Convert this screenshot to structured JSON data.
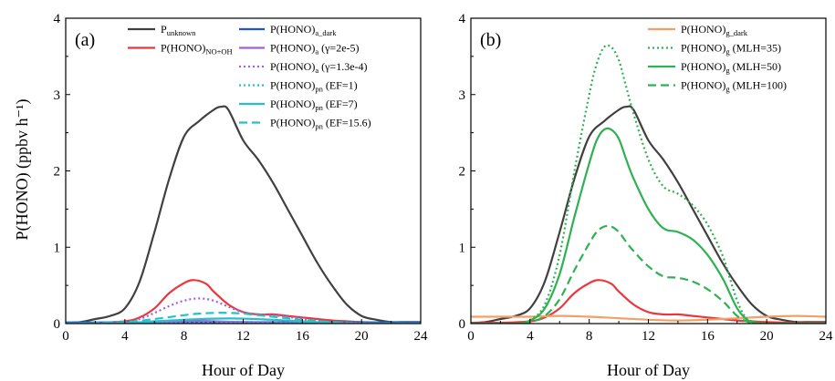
{
  "figure": {
    "ylabel": "P(HONO) (ppbv h⁻¹)"
  },
  "chart_data": [
    {
      "type": "line",
      "panel_label": "(a)",
      "xlabel": "Hour of Day",
      "xlim": [
        0,
        24
      ],
      "ylim": [
        0,
        4
      ],
      "xticks": [
        "0",
        "4",
        "8",
        "12",
        "16",
        "20",
        "24"
      ],
      "yticks": [
        "0",
        "1",
        "2",
        "3",
        "4"
      ],
      "legend": "top",
      "series": [
        {
          "name": "P",
          "sub": "unknown",
          "suffix": "",
          "color": "#404040",
          "dash": "solid",
          "x": [
            0,
            1,
            2,
            3,
            4,
            5,
            6,
            7,
            8,
            9,
            10,
            10.5,
            11,
            12,
            13,
            14,
            15,
            16,
            17,
            18,
            19,
            20,
            21,
            22,
            23,
            24
          ],
          "y": [
            0.01,
            0.02,
            0.06,
            0.1,
            0.2,
            0.55,
            1.2,
            1.9,
            2.45,
            2.65,
            2.8,
            2.84,
            2.8,
            2.4,
            2.15,
            1.85,
            1.5,
            1.15,
            0.8,
            0.5,
            0.25,
            0.1,
            0.05,
            0.02,
            0.02,
            0.02
          ]
        },
        {
          "name": "P(HONO)",
          "sub": "NO+OH",
          "suffix": "",
          "color": "#e8383d",
          "dash": "solid",
          "x": [
            0,
            2,
            4,
            5,
            6,
            7,
            8,
            8.7,
            9.5,
            10,
            11,
            12,
            13,
            14,
            15,
            16,
            17,
            18,
            19,
            20,
            22,
            24
          ],
          "y": [
            0.01,
            0.01,
            0.03,
            0.08,
            0.2,
            0.4,
            0.53,
            0.57,
            0.52,
            0.42,
            0.25,
            0.15,
            0.12,
            0.12,
            0.1,
            0.08,
            0.06,
            0.04,
            0.03,
            0.02,
            0.01,
            0.01
          ]
        },
        {
          "name": "P(HONO)",
          "sub": "a_dark",
          "suffix": "",
          "color": "#1f55c6",
          "dash": "solid",
          "x": [
            0,
            4,
            8,
            12,
            16,
            20,
            24
          ],
          "y": [
            0.015,
            0.015,
            0.02,
            0.02,
            0.015,
            0.015,
            0.015
          ]
        },
        {
          "name": "P(HONO)",
          "sub": "a",
          "suffix": " (γ=2e-5)",
          "color": "#a45ed9",
          "dash": "solid",
          "x": [
            0,
            4,
            6,
            8,
            9,
            10,
            12,
            14,
            16,
            18,
            20,
            24
          ],
          "y": [
            0.0,
            0.003,
            0.01,
            0.03,
            0.035,
            0.03,
            0.02,
            0.012,
            0.008,
            0.004,
            0.002,
            0.0
          ]
        },
        {
          "name": "P(HONO)",
          "sub": "a",
          "suffix": " (γ=1.3e-4)",
          "color": "#a45ed9",
          "dash": "dot",
          "x": [
            0,
            4,
            5,
            6,
            7,
            8,
            9,
            10,
            11,
            12,
            13,
            14,
            15,
            16,
            17,
            18,
            20,
            22,
            24
          ],
          "y": [
            0.0,
            0.02,
            0.06,
            0.14,
            0.23,
            0.3,
            0.33,
            0.3,
            0.22,
            0.15,
            0.12,
            0.11,
            0.09,
            0.06,
            0.04,
            0.02,
            0.01,
            0.0,
            0.0
          ]
        },
        {
          "name": "P(HONO)",
          "sub": "pn",
          "suffix": " (EF=1)",
          "color": "#25c0c9",
          "dash": "dot",
          "x": [
            0,
            4,
            6,
            8,
            10,
            12,
            14,
            16,
            18,
            20,
            24
          ],
          "y": [
            0.0,
            0.002,
            0.006,
            0.01,
            0.012,
            0.012,
            0.01,
            0.006,
            0.003,
            0.0,
            0.0
          ]
        },
        {
          "name": "P(HONO)",
          "sub": "pn",
          "suffix": " (EF=7)",
          "color": "#25c0c9",
          "dash": "solid",
          "x": [
            0,
            4,
            6,
            8,
            10,
            12,
            14,
            16,
            18,
            20,
            24
          ],
          "y": [
            0.0,
            0.008,
            0.03,
            0.05,
            0.065,
            0.065,
            0.05,
            0.03,
            0.01,
            0.002,
            0.0
          ]
        },
        {
          "name": "P(HONO)",
          "sub": "pn",
          "suffix": " (EF=15.6)",
          "color": "#25c0c9",
          "dash": "dash",
          "x": [
            0,
            4,
            6,
            8,
            9,
            10,
            11,
            12,
            13,
            14,
            15,
            16,
            18,
            20,
            24
          ],
          "y": [
            0.0,
            0.02,
            0.06,
            0.11,
            0.13,
            0.14,
            0.14,
            0.13,
            0.11,
            0.09,
            0.07,
            0.05,
            0.02,
            0.005,
            0.0
          ]
        }
      ]
    },
    {
      "type": "line",
      "panel_label": "(b)",
      "xlabel": "Hour of Day",
      "xlim": [
        0,
        24
      ],
      "ylim": [
        0,
        4
      ],
      "xticks": [
        "0",
        "4",
        "8",
        "12",
        "16",
        "20",
        "24"
      ],
      "yticks": [
        "0",
        "1",
        "2",
        "3",
        "4"
      ],
      "legend": "top-right",
      "series": [
        {
          "name": "",
          "sub": "",
          "suffix": "",
          "color": "#404040",
          "dash": "solid",
          "in_legend": false,
          "x": [
            0,
            1,
            2,
            3,
            4,
            5,
            6,
            7,
            8,
            9,
            10,
            10.5,
            11,
            12,
            13,
            14,
            15,
            16,
            17,
            18,
            19,
            20,
            21,
            22,
            23,
            24
          ],
          "y": [
            0.01,
            0.02,
            0.06,
            0.1,
            0.2,
            0.55,
            1.2,
            1.9,
            2.45,
            2.65,
            2.8,
            2.84,
            2.8,
            2.4,
            2.15,
            1.85,
            1.5,
            1.15,
            0.8,
            0.5,
            0.25,
            0.1,
            0.05,
            0.02,
            0.02,
            0.02
          ]
        },
        {
          "name": "",
          "sub": "",
          "suffix": "",
          "color": "#e8383d",
          "dash": "solid",
          "in_legend": false,
          "x": [
            0,
            2,
            4,
            5,
            6,
            7,
            8,
            8.7,
            9.5,
            10,
            11,
            12,
            13,
            14,
            15,
            16,
            17,
            18,
            19,
            20,
            22,
            24
          ],
          "y": [
            0.01,
            0.01,
            0.03,
            0.08,
            0.2,
            0.4,
            0.53,
            0.57,
            0.52,
            0.42,
            0.25,
            0.15,
            0.12,
            0.12,
            0.1,
            0.08,
            0.06,
            0.04,
            0.03,
            0.02,
            0.01,
            0.01
          ]
        },
        {
          "name": "P(HONO)",
          "sub": "g_dark",
          "suffix": "",
          "color": "#f2a066",
          "dash": "solid",
          "x": [
            0,
            2,
            4,
            6,
            8,
            10,
            12,
            14,
            16,
            18,
            20,
            22,
            24
          ],
          "y": [
            0.09,
            0.09,
            0.09,
            0.1,
            0.09,
            0.07,
            0.05,
            0.04,
            0.05,
            0.07,
            0.09,
            0.1,
            0.09
          ]
        },
        {
          "name": "P(HONO)",
          "sub": "g",
          "suffix": " (MLH=35)",
          "color": "#2eb153",
          "dash": "dot",
          "x": [
            0,
            3,
            4,
            5,
            6,
            7,
            8,
            8.5,
            9,
            9.5,
            10,
            10.5,
            11,
            12,
            13,
            14,
            15,
            16,
            17,
            17.5,
            18,
            18.5,
            19,
            20,
            21,
            22,
            24
          ],
          "y": [
            0.0,
            0.0,
            0.05,
            0.25,
            0.9,
            2.0,
            3.0,
            3.4,
            3.62,
            3.62,
            3.45,
            3.1,
            2.75,
            2.15,
            1.8,
            1.7,
            1.55,
            1.3,
            0.9,
            0.6,
            0.3,
            0.1,
            0.03,
            0.0,
            0.0,
            0.0,
            0.0
          ]
        },
        {
          "name": "P(HONO)",
          "sub": "g",
          "suffix": " (MLH=50)",
          "color": "#2eb153",
          "dash": "solid",
          "x": [
            0,
            3,
            4,
            5,
            6,
            7,
            8,
            8.5,
            9,
            9.5,
            10,
            10.5,
            11,
            12,
            13,
            14,
            15,
            16,
            17,
            17.5,
            18,
            18.5,
            19,
            20,
            21,
            22,
            24
          ],
          "y": [
            0.0,
            0.0,
            0.04,
            0.2,
            0.65,
            1.4,
            2.1,
            2.4,
            2.54,
            2.54,
            2.42,
            2.15,
            1.9,
            1.5,
            1.25,
            1.2,
            1.1,
            0.9,
            0.6,
            0.4,
            0.2,
            0.08,
            0.02,
            0.0,
            0.0,
            0.0,
            0.0
          ]
        },
        {
          "name": "P(HONO)",
          "sub": "g",
          "suffix": " (MLH=100)",
          "color": "#2eb153",
          "dash": "dash",
          "x": [
            0,
            3,
            4,
            5,
            6,
            7,
            8,
            8.5,
            9,
            9.5,
            10,
            10.5,
            11,
            12,
            13,
            14,
            15,
            16,
            17,
            17.5,
            18,
            18.5,
            19,
            20,
            21,
            22,
            24
          ],
          "y": [
            0.0,
            0.0,
            0.02,
            0.1,
            0.32,
            0.7,
            1.05,
            1.2,
            1.27,
            1.27,
            1.2,
            1.07,
            0.95,
            0.75,
            0.62,
            0.6,
            0.55,
            0.45,
            0.3,
            0.2,
            0.1,
            0.04,
            0.01,
            0.0,
            0.0,
            0.0,
            0.0
          ]
        }
      ]
    }
  ]
}
